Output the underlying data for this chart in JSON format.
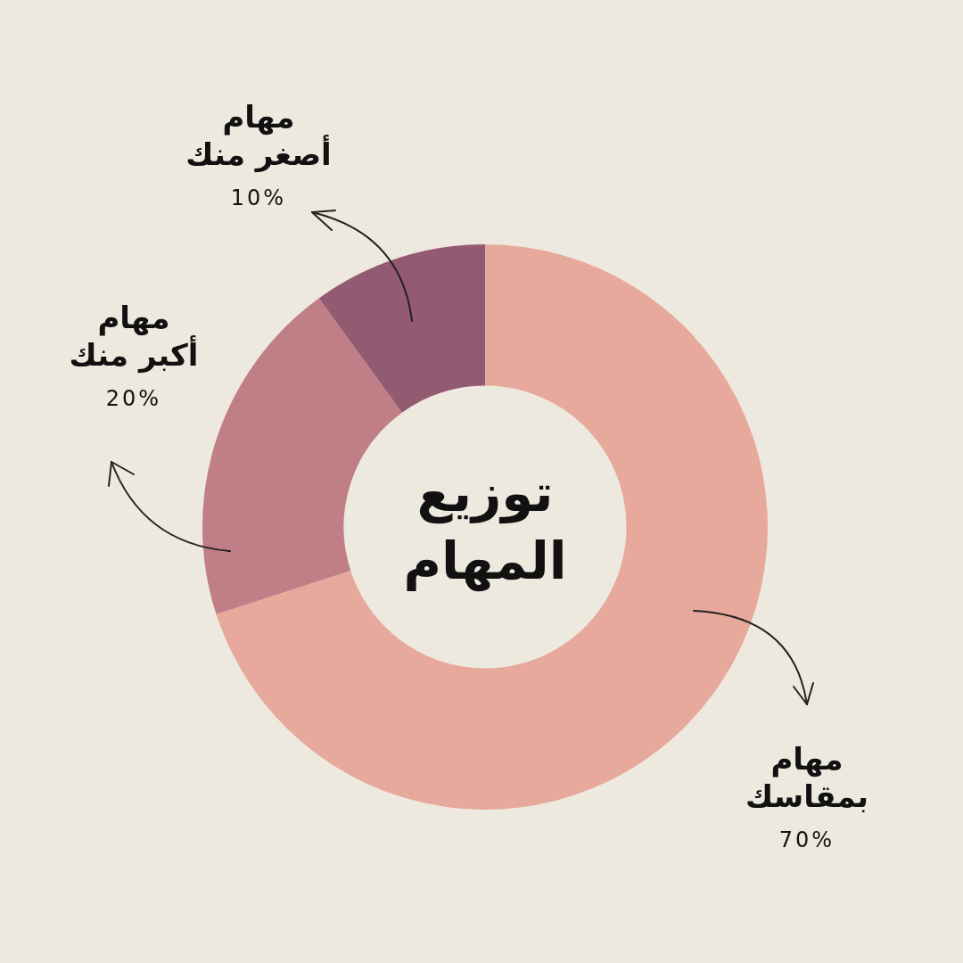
{
  "chart_data": {
    "type": "donut",
    "title": "توزيع المهام",
    "categories": [
      "مهام بمقاسك",
      "مهام أكبر منك",
      "مهام أصغر منك"
    ],
    "values": [
      70,
      20,
      10
    ],
    "value_labels": [
      "70%",
      "20%",
      "10%"
    ],
    "colors": [
      "#e8a99d",
      "#c07f86",
      "#935b72"
    ],
    "legend": false
  }
}
